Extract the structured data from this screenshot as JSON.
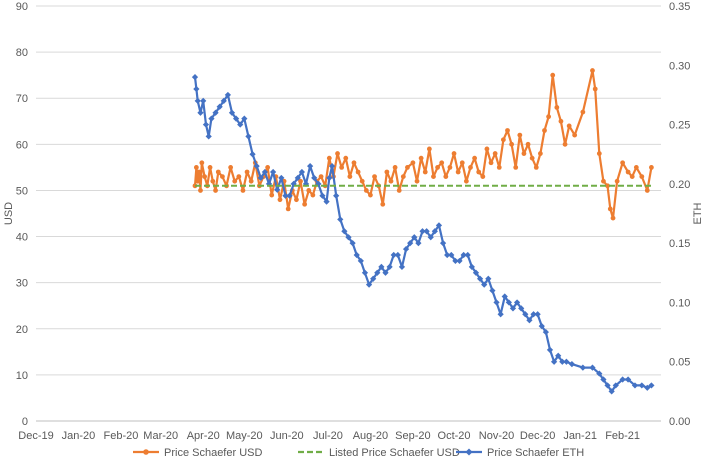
{
  "chart_data": {
    "type": "line",
    "title": "",
    "xlabel": "",
    "ylabel": "USD",
    "y2label": "ETH",
    "x_ticks": [
      "Dec-19",
      "Jan-20",
      "Feb-20",
      "Mar-20",
      "Apr-20",
      "May-20",
      "Jun-20",
      "Jul-20",
      "Aug-20",
      "Sep-20",
      "Oct-20",
      "Nov-20",
      "Dec-20",
      "Jan-21",
      "Feb-21"
    ],
    "xlim": [
      "2019-12-01",
      "2021-03-01"
    ],
    "ylim": [
      0,
      90
    ],
    "y_ticks": [
      "0",
      "10",
      "20",
      "30",
      "40",
      "50",
      "60",
      "70",
      "80",
      "90"
    ],
    "y2lim": [
      0,
      0.35
    ],
    "y2_ticks": [
      "0.00",
      "0.05",
      "0.10",
      "0.15",
      "0.20",
      "0.25",
      "0.30",
      "0.35"
    ],
    "grid": true,
    "legend_position": "bottom",
    "colors": {
      "usd": "#ED7D31",
      "listed": "#70AD47",
      "eth": "#4472C4",
      "grid": "#D9D9D9",
      "axis": "#BFBFBF"
    },
    "series": [
      {
        "name": "Price Schaefer USD",
        "axis": "left",
        "style": "solid-markers",
        "x": [
          "2020-03-26",
          "2020-03-27",
          "2020-03-28",
          "2020-03-29",
          "2020-03-30",
          "2020-03-31",
          "2020-04-02",
          "2020-04-04",
          "2020-04-06",
          "2020-04-08",
          "2020-04-10",
          "2020-04-12",
          "2020-04-15",
          "2020-04-18",
          "2020-04-21",
          "2020-04-24",
          "2020-04-27",
          "2020-04-30",
          "2020-05-03",
          "2020-05-06",
          "2020-05-09",
          "2020-05-12",
          "2020-05-15",
          "2020-05-18",
          "2020-05-21",
          "2020-05-24",
          "2020-05-27",
          "2020-05-30",
          "2020-06-02",
          "2020-06-05",
          "2020-06-08",
          "2020-06-11",
          "2020-06-14",
          "2020-06-17",
          "2020-06-20",
          "2020-06-23",
          "2020-06-26",
          "2020-06-29",
          "2020-07-02",
          "2020-07-05",
          "2020-07-08",
          "2020-07-11",
          "2020-07-14",
          "2020-07-17",
          "2020-07-20",
          "2020-07-23",
          "2020-07-26",
          "2020-07-29",
          "2020-08-01",
          "2020-08-04",
          "2020-08-07",
          "2020-08-10",
          "2020-08-13",
          "2020-08-16",
          "2020-08-19",
          "2020-08-22",
          "2020-08-25",
          "2020-08-28",
          "2020-09-01",
          "2020-09-04",
          "2020-09-07",
          "2020-09-10",
          "2020-09-13",
          "2020-09-16",
          "2020-09-19",
          "2020-09-22",
          "2020-09-25",
          "2020-09-28",
          "2020-10-01",
          "2020-10-04",
          "2020-10-07",
          "2020-10-10",
          "2020-10-13",
          "2020-10-16",
          "2020-10-19",
          "2020-10-22",
          "2020-10-25",
          "2020-10-28",
          "2020-10-31",
          "2020-11-03",
          "2020-11-06",
          "2020-11-09",
          "2020-11-12",
          "2020-11-15",
          "2020-11-18",
          "2020-11-21",
          "2020-11-24",
          "2020-11-27",
          "2020-11-30",
          "2020-12-03",
          "2020-12-06",
          "2020-12-09",
          "2020-12-12",
          "2020-12-15",
          "2020-12-18",
          "2020-12-21",
          "2020-12-24",
          "2020-12-28",
          "2021-01-03",
          "2021-01-10",
          "2021-01-12",
          "2021-01-15",
          "2021-01-18",
          "2021-01-21",
          "2021-01-23",
          "2021-01-25",
          "2021-01-28",
          "2021-02-01",
          "2021-02-05",
          "2021-02-08",
          "2021-02-11",
          "2021-02-15",
          "2021-02-19",
          "2021-02-22"
        ],
        "values": [
          51,
          55,
          52,
          54,
          50,
          56,
          53,
          51,
          55,
          52,
          50,
          54,
          53,
          51,
          55,
          52,
          53,
          50,
          54,
          52,
          56,
          51,
          53,
          55,
          49,
          53,
          48,
          52,
          46,
          50,
          48,
          52,
          47,
          50,
          49,
          52,
          53,
          51,
          57,
          53,
          58,
          55,
          57,
          53,
          56,
          54,
          52,
          50,
          49,
          53,
          51,
          47,
          54,
          52,
          55,
          50,
          53,
          55,
          56,
          52,
          57,
          54,
          59,
          53,
          55,
          56,
          53,
          55,
          58,
          54,
          56,
          52,
          55,
          57,
          54,
          53,
          59,
          56,
          58,
          55,
          61,
          63,
          60,
          55,
          62,
          58,
          60,
          57,
          55,
          58,
          63,
          66,
          75,
          68,
          65,
          60,
          64,
          62,
          67,
          76,
          72,
          58,
          52,
          51,
          46,
          44,
          52,
          56,
          54,
          53,
          55,
          53,
          50,
          55
        ]
      },
      {
        "name": "Listed Price Schaefer USD",
        "axis": "left",
        "style": "dashed",
        "x": [
          "2020-03-26",
          "2021-02-22"
        ],
        "values": [
          51,
          51
        ]
      },
      {
        "name": "Price Schaefer ETH",
        "axis": "right",
        "style": "solid-markers",
        "x": [
          "2020-03-26",
          "2020-03-27",
          "2020-03-28",
          "2020-03-30",
          "2020-04-01",
          "2020-04-03",
          "2020-04-05",
          "2020-04-07",
          "2020-04-10",
          "2020-04-13",
          "2020-04-16",
          "2020-04-19",
          "2020-04-22",
          "2020-04-25",
          "2020-04-28",
          "2020-05-01",
          "2020-05-04",
          "2020-05-07",
          "2020-05-10",
          "2020-05-13",
          "2020-05-16",
          "2020-05-19",
          "2020-05-22",
          "2020-05-25",
          "2020-05-28",
          "2020-05-31",
          "2020-06-03",
          "2020-06-06",
          "2020-06-09",
          "2020-06-12",
          "2020-06-15",
          "2020-06-18",
          "2020-06-21",
          "2020-06-24",
          "2020-06-27",
          "2020-06-30",
          "2020-07-02",
          "2020-07-04",
          "2020-07-07",
          "2020-07-10",
          "2020-07-13",
          "2020-07-16",
          "2020-07-19",
          "2020-07-22",
          "2020-07-25",
          "2020-07-28",
          "2020-07-31",
          "2020-08-03",
          "2020-08-06",
          "2020-08-09",
          "2020-08-12",
          "2020-08-15",
          "2020-08-18",
          "2020-08-21",
          "2020-08-24",
          "2020-08-27",
          "2020-08-30",
          "2020-09-02",
          "2020-09-05",
          "2020-09-08",
          "2020-09-11",
          "2020-09-14",
          "2020-09-17",
          "2020-09-20",
          "2020-09-23",
          "2020-09-26",
          "2020-09-29",
          "2020-10-02",
          "2020-10-05",
          "2020-10-08",
          "2020-10-11",
          "2020-10-14",
          "2020-10-17",
          "2020-10-20",
          "2020-10-23",
          "2020-10-26",
          "2020-10-29",
          "2020-11-01",
          "2020-11-04",
          "2020-11-07",
          "2020-11-10",
          "2020-11-13",
          "2020-11-16",
          "2020-11-19",
          "2020-11-22",
          "2020-11-25",
          "2020-11-28",
          "2020-12-01",
          "2020-12-04",
          "2020-12-07",
          "2020-12-10",
          "2020-12-13",
          "2020-12-16",
          "2020-12-19",
          "2020-12-22",
          "2020-12-26",
          "2021-01-03",
          "2021-01-10",
          "2021-01-15",
          "2021-01-18",
          "2021-01-21",
          "2021-01-24",
          "2021-01-27",
          "2021-02-01",
          "2021-02-05",
          "2021-02-10",
          "2021-02-15",
          "2021-02-19",
          "2021-02-22"
        ],
        "values": [
          0.29,
          0.28,
          0.27,
          0.26,
          0.27,
          0.25,
          0.24,
          0.255,
          0.26,
          0.265,
          0.27,
          0.275,
          0.26,
          0.255,
          0.25,
          0.255,
          0.24,
          0.225,
          0.215,
          0.205,
          0.21,
          0.2,
          0.21,
          0.195,
          0.205,
          0.19,
          0.19,
          0.2,
          0.205,
          0.21,
          0.2,
          0.215,
          0.205,
          0.2,
          0.19,
          0.185,
          0.205,
          0.215,
          0.19,
          0.17,
          0.16,
          0.155,
          0.15,
          0.14,
          0.135,
          0.125,
          0.115,
          0.12,
          0.125,
          0.13,
          0.125,
          0.13,
          0.14,
          0.14,
          0.13,
          0.145,
          0.15,
          0.155,
          0.15,
          0.16,
          0.16,
          0.155,
          0.16,
          0.165,
          0.15,
          0.14,
          0.14,
          0.135,
          0.135,
          0.14,
          0.14,
          0.13,
          0.125,
          0.12,
          0.115,
          0.12,
          0.11,
          0.1,
          0.09,
          0.105,
          0.1,
          0.095,
          0.1,
          0.095,
          0.09,
          0.085,
          0.09,
          0.09,
          0.08,
          0.075,
          0.06,
          0.05,
          0.055,
          0.05,
          0.05,
          0.048,
          0.045,
          0.045,
          0.04,
          0.035,
          0.03,
          0.025,
          0.03,
          0.035,
          0.035,
          0.03,
          0.03,
          0.028,
          0.03
        ]
      }
    ]
  }
}
